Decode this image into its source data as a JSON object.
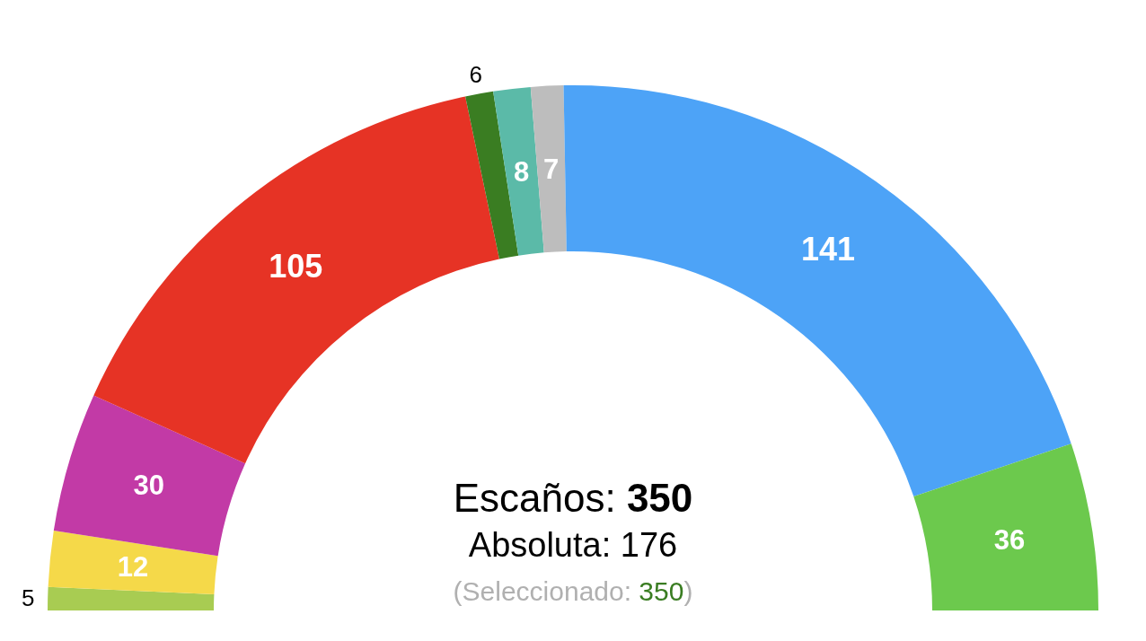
{
  "chart_data": {
    "type": "donut",
    "categories": [
      null,
      null,
      null,
      null,
      null,
      null,
      null,
      null,
      null
    ],
    "values": [
      5,
      12,
      30,
      105,
      6,
      8,
      7,
      141,
      36
    ],
    "colors": [
      "#a8cc52",
      "#f5d949",
      "#c23aa6",
      "#e63325",
      "#3a7d22",
      "#5bbaa8",
      "#bdbdbd",
      "#4da3f7",
      "#6cc94d"
    ],
    "data_labels": true,
    "annotations": [
      "Escaños: 350",
      "Absoluta: 176",
      "(Seleccionado: 350)"
    ]
  }
}
